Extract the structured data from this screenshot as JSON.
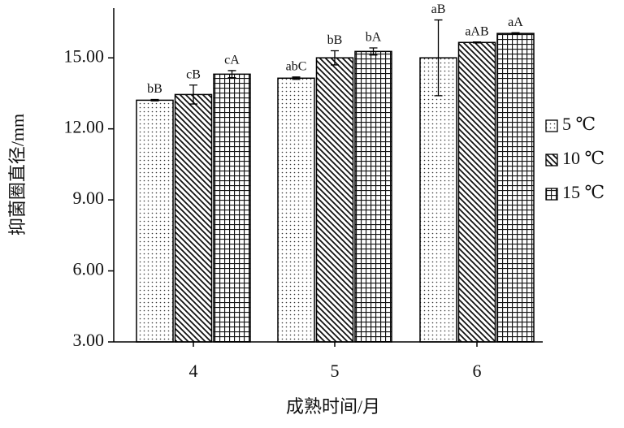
{
  "chart_data": {
    "type": "bar",
    "x_label": "成熟时间/月",
    "y_label": "抑菌圈直径/mm",
    "categories": [
      "4",
      "5",
      "6"
    ],
    "series": [
      {
        "name": "5 ℃",
        "color": "#000000",
        "pattern": "dots",
        "values": [
          13.21,
          14.14,
          15.0
        ],
        "errors": [
          0.03,
          0.05,
          1.6
        ],
        "letters": [
          "bB",
          "abC",
          "aB"
        ]
      },
      {
        "name": "10 ℃",
        "color": "#000000",
        "pattern": "diagonal",
        "values": [
          13.45,
          15.0,
          15.65
        ],
        "errors": [
          0.4,
          0.3,
          0.02
        ],
        "letters": [
          "cB",
          "bB",
          "aAB"
        ]
      },
      {
        "name": "15 ℃",
        "color": "#000000",
        "pattern": "grid",
        "values": [
          14.31,
          15.27,
          16.03
        ],
        "errors": [
          0.15,
          0.15,
          0.03
        ],
        "letters": [
          "cA",
          "bA",
          "aA"
        ]
      }
    ],
    "ylim": [
      3,
      17.1
    ],
    "yticks": [
      {
        "value": 3,
        "label": "3.00"
      },
      {
        "value": 6,
        "label": "6.00"
      },
      {
        "value": 9,
        "label": "9.00"
      },
      {
        "value": 12,
        "label": "12.00"
      },
      {
        "value": 15,
        "label": "15.00"
      }
    ],
    "grid": false,
    "legend": "right"
  }
}
